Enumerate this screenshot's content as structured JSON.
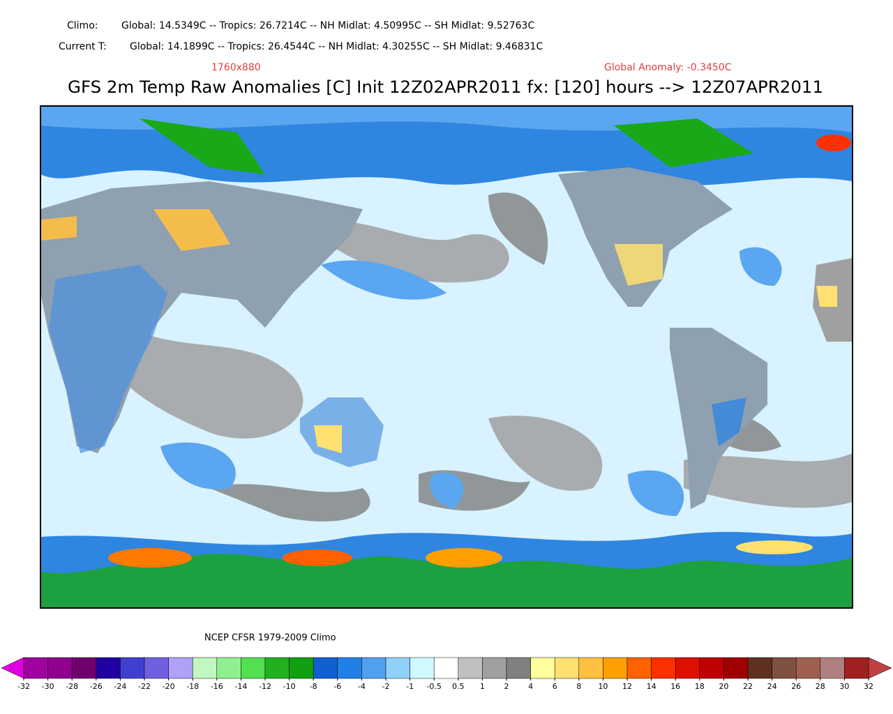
{
  "header": {
    "climo_label": "Climo:",
    "climo_values": "Global: 14.5349C -- Tropics: 26.7214C -- NH Midlat: 4.50995C -- SH Midlat: 9.52763C",
    "current_label": "Current T:",
    "current_values": "Global: 14.1899C -- Tropics: 26.4544C -- NH Midlat: 4.30255C -- SH Midlat: 9.46831C",
    "resolution": "1760x880",
    "global_anomaly": "Global Anomaly: -0.3450C",
    "title": "GFS 2m Temp Raw Anomalies [C] Init 12Z02APR2011 fx: [120] hours --> 12Z07APR2011"
  },
  "footer": {
    "note": "NCEP CFSR 1979-2009 Climo"
  },
  "colorbar": {
    "ticks": [
      -32,
      -30,
      -28,
      -26,
      -24,
      -22,
      -20,
      -18,
      -16,
      -14,
      -12,
      -10,
      -8,
      -6,
      -4,
      -2,
      -1,
      -0.5,
      0.5,
      1,
      2,
      4,
      6,
      8,
      10,
      12,
      14,
      16,
      18,
      20,
      22,
      24,
      26,
      28,
      30,
      32
    ],
    "colors": [
      "#e000e0",
      "#a000a0",
      "#900090",
      "#700070",
      "#2000a0",
      "#4040d0",
      "#7060e0",
      "#b0a0f8",
      "#c0f8c0",
      "#90f090",
      "#50e050",
      "#20b020",
      "#10a010",
      "#1060d0",
      "#2080e8",
      "#50a0f0",
      "#90d0f8",
      "#d0f8ff",
      "#ffffff",
      "#c0c0c0",
      "#a0a0a0",
      "#808080",
      "#ffffa0",
      "#ffe070",
      "#ffc040",
      "#ffa000",
      "#ff6000",
      "#ff3000",
      "#e01000",
      "#c00000",
      "#a00000",
      "#603020",
      "#805040",
      "#a06050",
      "#b08080",
      "#a02020",
      "#c04040"
    ]
  }
}
